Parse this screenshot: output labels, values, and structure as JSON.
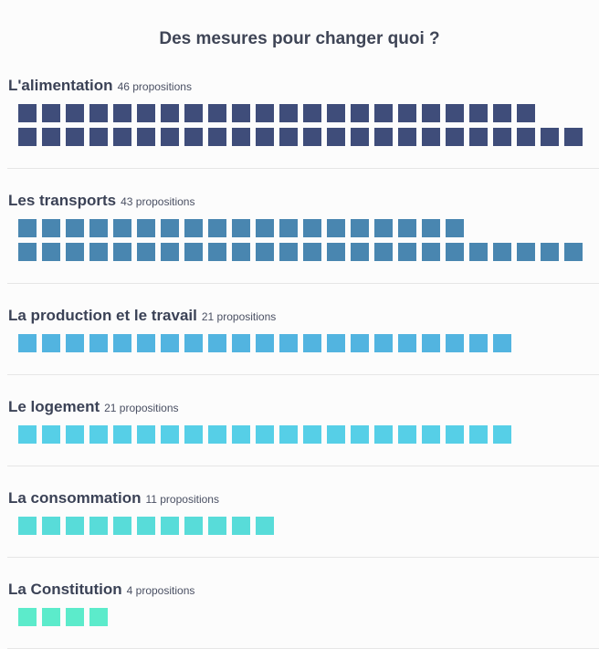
{
  "chart_data": {
    "type": "waffle",
    "title": "Des mesures pour changer quoi ?",
    "unit_label": "propositions",
    "categories": [
      {
        "label": "L'alimentation",
        "value": 46,
        "count_text": "46 propositions",
        "color": "#3f4d7a"
      },
      {
        "label": "Les transports",
        "value": 43,
        "count_text": "43 propositions",
        "color": "#4986b0"
      },
      {
        "label": "La production et le travail",
        "value": 21,
        "count_text": "21 propositions",
        "color": "#52b4e0"
      },
      {
        "label": "Le logement",
        "value": 21,
        "count_text": "21 propositions",
        "color": "#56cfe7"
      },
      {
        "label": "La consommation",
        "value": 11,
        "count_text": "11 propositions",
        "color": "#58dcd9"
      },
      {
        "label": "La Constitution",
        "value": 4,
        "count_text": "4 propositions",
        "color": "#5cebcb"
      }
    ],
    "squares_per_row": 24
  }
}
